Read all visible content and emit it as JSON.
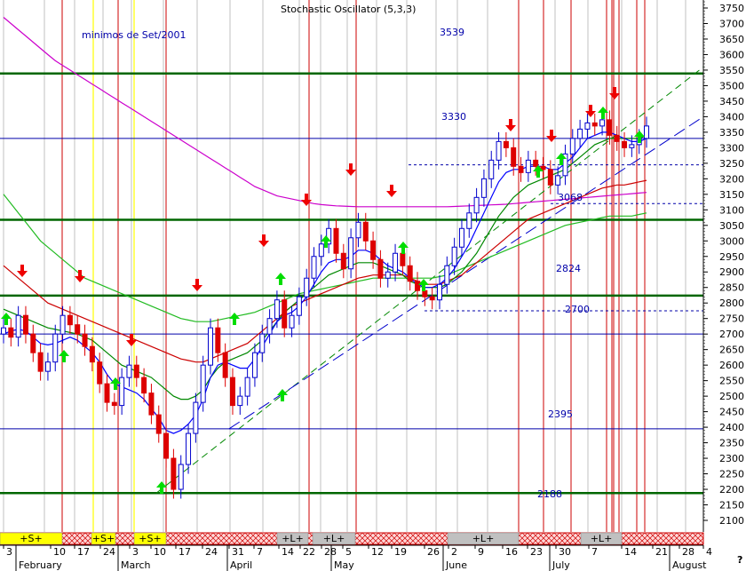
{
  "chart_data": {
    "type": "candlestick",
    "title": "Stochastic Oscillator (5,3,3)",
    "annotation": "minimos de Set/2001",
    "ylim": [
      2100,
      3780
    ],
    "y_ticks": [
      2100,
      2150,
      2200,
      2250,
      2300,
      2350,
      2400,
      2450,
      2500,
      2550,
      2600,
      2650,
      2700,
      2750,
      2800,
      2850,
      2900,
      2950,
      3000,
      3050,
      3100,
      3150,
      3200,
      3250,
      3300,
      3350,
      3400,
      3450,
      3500,
      3550,
      3600,
      3650,
      3700,
      3750
    ],
    "y_axis_glyph": "?",
    "x_day_ticks": [
      "3",
      "10",
      "17",
      "24",
      "3",
      "10",
      "17",
      "24",
      "31",
      "7",
      "14",
      "22",
      "28",
      "5",
      "12",
      "19",
      "26",
      "2",
      "9",
      "16",
      "23",
      "30",
      "7",
      "14",
      "21",
      "28",
      "4"
    ],
    "x_month_labels": [
      "February",
      "March",
      "April",
      "May",
      "June",
      "July",
      "August"
    ],
    "levels": [
      {
        "value": 3539,
        "label": "3539",
        "style": "solid-green-thick"
      },
      {
        "value": 3330,
        "label": "3330",
        "style": "solid-blue"
      },
      {
        "value": 3068,
        "label": "3068",
        "style": "solid-green-thick"
      },
      {
        "value": 2824,
        "label": "2824",
        "style": "solid-green-thick"
      },
      {
        "value": 2700,
        "label": "2700",
        "style": "solid-blue"
      },
      {
        "value": 2395,
        "label": "2395",
        "style": "solid-blue"
      },
      {
        "value": 2188,
        "label": "2188",
        "style": "solid-green-thick"
      }
    ],
    "signal_bar": [
      {
        "label": "+S+",
        "kind": "yellow"
      },
      {
        "label": "+S+",
        "kind": "yellow"
      },
      {
        "label": "+S+",
        "kind": "yellow"
      },
      {
        "label": "+L+",
        "kind": "gray"
      },
      {
        "label": "+L+",
        "kind": "gray"
      },
      {
        "label": "+L+",
        "kind": "gray"
      },
      {
        "label": "+L+",
        "kind": "gray"
      }
    ],
    "colors": {
      "up_candle": "#0000cc",
      "down_candle": "#dd0000",
      "ma_short": "#0000ff",
      "ma_mid_green": "#008800",
      "ma_red": "#cc0000",
      "ma_green_long": "#22bb22",
      "ma_magenta": "#cc00cc",
      "vertical_red": "#cc0000",
      "vertical_yellow": "#ffff66",
      "grid_gray": "#c0c0c0",
      "arrow_up": "#00dd00",
      "arrow_down": "#ee0000",
      "level_green": "#006600",
      "level_blue": "#0000aa"
    },
    "series": {
      "closes": [
        2720,
        2690,
        2760,
        2700,
        2640,
        2580,
        2610,
        2700,
        2760,
        2730,
        2700,
        2660,
        2610,
        2540,
        2480,
        2470,
        2560,
        2600,
        2560,
        2510,
        2440,
        2380,
        2300,
        2200,
        2280,
        2380,
        2480,
        2600,
        2720,
        2640,
        2560,
        2470,
        2500,
        2560,
        2640,
        2700,
        2750,
        2810,
        2720,
        2760,
        2820,
        2880,
        2950,
        2990,
        3040,
        2960,
        2910,
        3010,
        3060,
        3000,
        2940,
        2880,
        2900,
        2960,
        2920,
        2870,
        2840,
        2820,
        2810,
        2860,
        2920,
        2980,
        3040,
        3090,
        3140,
        3200,
        3260,
        3320,
        3300,
        3240,
        3220,
        3260,
        3240,
        3230,
        3180,
        3210,
        3280,
        3330,
        3360,
        3380,
        3370,
        3390,
        3340,
        3320,
        3300,
        3310,
        3330,
        3370
      ],
      "ma_short": [
        2700,
        2710,
        2715,
        2710,
        2690,
        2670,
        2665,
        2670,
        2680,
        2690,
        2680,
        2660,
        2640,
        2610,
        2570,
        2540,
        2530,
        2520,
        2510,
        2490,
        2460,
        2430,
        2390,
        2380,
        2390,
        2410,
        2440,
        2490,
        2560,
        2600,
        2610,
        2600,
        2590,
        2590,
        2620,
        2660,
        2700,
        2740,
        2760,
        2770,
        2790,
        2820,
        2860,
        2900,
        2930,
        2940,
        2940,
        2950,
        2970,
        2970,
        2960,
        2940,
        2920,
        2910,
        2900,
        2880,
        2860,
        2850,
        2850,
        2860,
        2880,
        2910,
        2950,
        2990,
        3040,
        3090,
        3140,
        3190,
        3220,
        3230,
        3230,
        3240,
        3240,
        3240,
        3230,
        3230,
        3250,
        3270,
        3300,
        3330,
        3340,
        3350,
        3350,
        3340,
        3330,
        3320,
        3320,
        3330
      ],
      "ma_mid_green": [
        2780,
        2770,
        2760,
        2750,
        2740,
        2730,
        2720,
        2715,
        2710,
        2705,
        2700,
        2690,
        2680,
        2660,
        2640,
        2620,
        2600,
        2590,
        2580,
        2570,
        2560,
        2540,
        2520,
        2500,
        2490,
        2490,
        2500,
        2520,
        2560,
        2590,
        2610,
        2620,
        2630,
        2640,
        2660,
        2680,
        2710,
        2740,
        2770,
        2790,
        2810,
        2830,
        2850,
        2870,
        2890,
        2900,
        2910,
        2920,
        2930,
        2930,
        2930,
        2920,
        2910,
        2900,
        2890,
        2870,
        2860,
        2850,
        2850,
        2850,
        2860,
        2880,
        2900,
        2930,
        2960,
        3000,
        3040,
        3080,
        3110,
        3140,
        3160,
        3180,
        3190,
        3200,
        3210,
        3220,
        3230,
        3250,
        3270,
        3290,
        3310,
        3320,
        3330,
        3330,
        3330,
        3330,
        3330,
        3340
      ],
      "ma_red": [
        2920,
        2900,
        2880,
        2860,
        2840,
        2820,
        2800,
        2790,
        2780,
        2770,
        2760,
        2750,
        2740,
        2730,
        2720,
        2710,
        2700,
        2690,
        2680,
        2670,
        2660,
        2650,
        2640,
        2630,
        2620,
        2615,
        2610,
        2610,
        2620,
        2630,
        2640,
        2650,
        2660,
        2670,
        2690,
        2710,
        2730,
        2750,
        2770,
        2790,
        2800,
        2810,
        2820,
        2830,
        2840,
        2850,
        2860,
        2870,
        2880,
        2885,
        2890,
        2890,
        2890,
        2890,
        2890,
        2880,
        2870,
        2860,
        2860,
        2860,
        2870,
        2880,
        2890,
        2910,
        2930,
        2950,
        2970,
        2990,
        3010,
        3030,
        3050,
        3070,
        3080,
        3090,
        3100,
        3110,
        3120,
        3130,
        3140,
        3150,
        3160,
        3170,
        3175,
        3180,
        3180,
        3185,
        3190,
        3195
      ],
      "ma_green_long": [
        3150,
        3120,
        3090,
        3060,
        3030,
        3000,
        2980,
        2960,
        2940,
        2920,
        2900,
        2880,
        2870,
        2860,
        2850,
        2840,
        2830,
        2820,
        2810,
        2800,
        2790,
        2780,
        2770,
        2760,
        2750,
        2745,
        2740,
        2740,
        2740,
        2745,
        2750,
        2755,
        2760,
        2765,
        2770,
        2780,
        2790,
        2800,
        2810,
        2820,
        2830,
        2835,
        2840,
        2845,
        2850,
        2855,
        2860,
        2865,
        2870,
        2875,
        2880,
        2880,
        2880,
        2880,
        2880,
        2880,
        2880,
        2880,
        2880,
        2885,
        2890,
        2900,
        2910,
        2920,
        2930,
        2940,
        2950,
        2960,
        2970,
        2980,
        2990,
        3000,
        3010,
        3020,
        3030,
        3040,
        3050,
        3055,
        3060,
        3065,
        3070,
        3075,
        3080,
        3080,
        3080,
        3080,
        3085,
        3090
      ],
      "ma_magenta": [
        3720,
        3700,
        3680,
        3660,
        3640,
        3620,
        3600,
        3580,
        3565,
        3550,
        3535,
        3520,
        3505,
        3490,
        3475,
        3460,
        3445,
        3430,
        3415,
        3400,
        3385,
        3370,
        3355,
        3340,
        3325,
        3310,
        3295,
        3280,
        3265,
        3250,
        3235,
        3220,
        3205,
        3190,
        3175,
        3165,
        3155,
        3145,
        3140,
        3135,
        3130,
        3125,
        3120,
        3117,
        3115,
        3113,
        3112,
        3111,
        3110,
        3110,
        3110,
        3110,
        3110,
        3110,
        3110,
        3110,
        3110,
        3110,
        3110,
        3110,
        3110,
        3111,
        3112,
        3113,
        3114,
        3115,
        3116,
        3117,
        3118,
        3120,
        3122,
        3124,
        3126,
        3128,
        3130,
        3132,
        3134,
        3136,
        3138,
        3140,
        3142,
        3144,
        3146,
        3148,
        3150,
        3152,
        3154,
        3156
      ]
    }
  }
}
